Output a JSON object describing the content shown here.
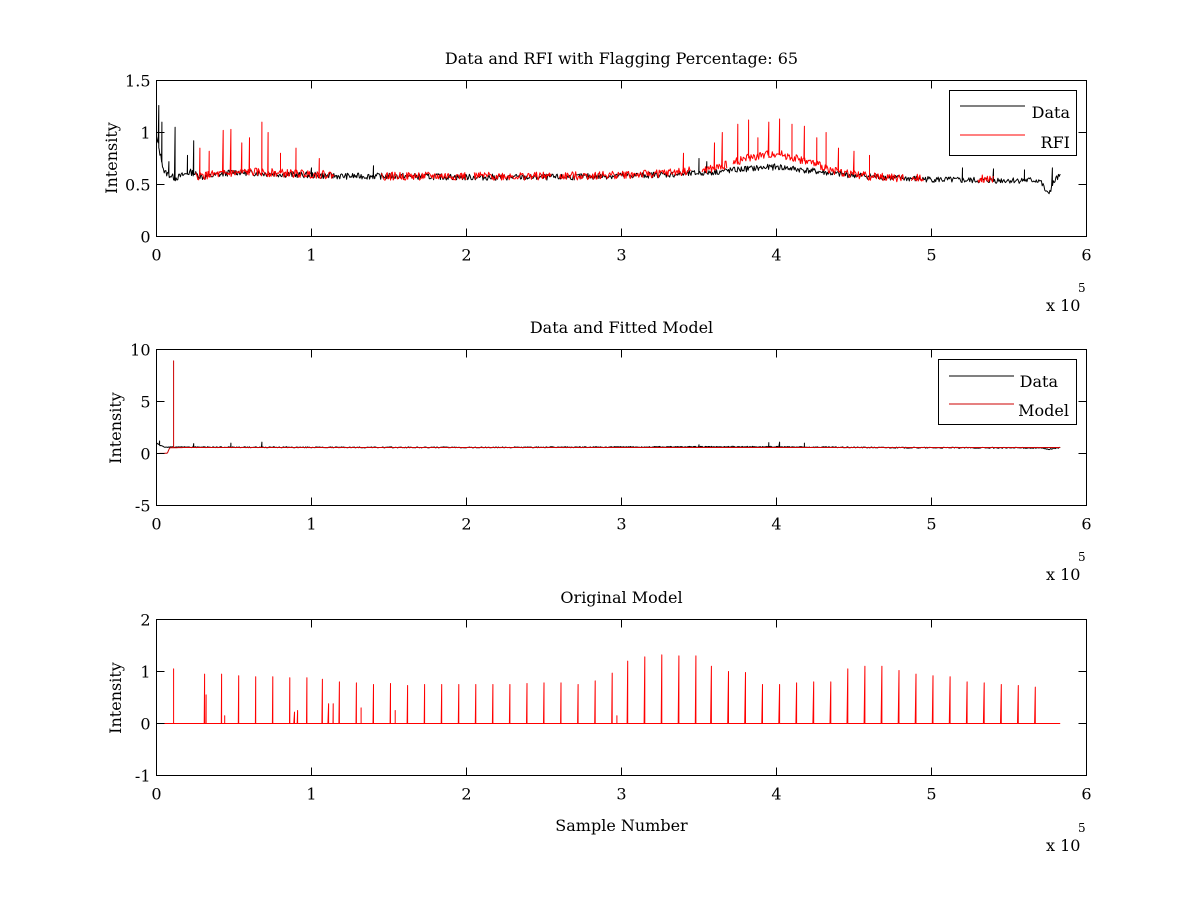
{
  "figure": {
    "background": "#ffffff",
    "data_color": "#000000",
    "rfi_color": "#ff0000"
  },
  "chart_data": [
    {
      "type": "line",
      "title": "Data and RFI with Flagging Percentage: 65",
      "xlabel": "",
      "ylabel": "Intensity",
      "xlim": [
        0,
        600000
      ],
      "ylim": [
        0,
        1.5
      ],
      "xticks": [
        0,
        1,
        2,
        3,
        4,
        5,
        6
      ],
      "yticks": [
        0,
        0.5,
        1,
        1.5
      ],
      "x_multiplier": {
        "base": "x 10",
        "power": "5"
      },
      "legend": {
        "position": "top-right",
        "entries": [
          "Data",
          "RFI"
        ]
      },
      "grid": false,
      "series": [
        {
          "name": "Data",
          "color": "#000000",
          "baseline": [
            [
              0,
              0.95
            ],
            [
              5000,
              0.62
            ],
            [
              12000,
              0.56
            ],
            [
              22000,
              0.62
            ],
            [
              30000,
              0.57
            ],
            [
              50000,
              0.62
            ],
            [
              80000,
              0.6
            ],
            [
              120000,
              0.58
            ],
            [
              160000,
              0.58
            ],
            [
              200000,
              0.57
            ],
            [
              260000,
              0.57
            ],
            [
              340000,
              0.6
            ],
            [
              360000,
              0.62
            ],
            [
              380000,
              0.65
            ],
            [
              400000,
              0.67
            ],
            [
              440000,
              0.6
            ],
            [
              480000,
              0.56
            ],
            [
              520000,
              0.54
            ],
            [
              560000,
              0.54
            ],
            [
              570000,
              0.54
            ],
            [
              575000,
              0.4
            ],
            [
              580000,
              0.55
            ],
            [
              583000,
              0.58
            ]
          ],
          "noise": 0.03,
          "peaks": [
            [
              1500,
              1.26
            ],
            [
              3500,
              1.1
            ],
            [
              8000,
              0.72
            ],
            [
              12000,
              1.05
            ],
            [
              20000,
              0.78
            ],
            [
              24000,
              0.92
            ],
            [
              60000,
              0.65
            ],
            [
              100000,
              0.66
            ],
            [
              140000,
              0.68
            ],
            [
              350000,
              0.75
            ],
            [
              355000,
              0.72
            ],
            [
              520000,
              0.66
            ],
            [
              540000,
              0.65
            ],
            [
              560000,
              0.64
            ],
            [
              578000,
              0.66
            ]
          ]
        },
        {
          "name": "RFI",
          "color": "#ff0000",
          "baseline": [
            [
              25000,
              0.58
            ],
            [
              60000,
              0.62
            ],
            [
              100000,
              0.6
            ],
            [
              140000,
              0.58
            ],
            [
              200000,
              0.58
            ],
            [
              260000,
              0.58
            ],
            [
              320000,
              0.6
            ],
            [
              360000,
              0.65
            ],
            [
              380000,
              0.75
            ],
            [
              400000,
              0.8
            ],
            [
              420000,
              0.72
            ],
            [
              440000,
              0.62
            ],
            [
              460000,
              0.58
            ],
            [
              482000,
              0.56
            ]
          ],
          "segments": [
            [
              25000,
              115000
            ],
            [
              145000,
              200000
            ],
            [
              205000,
              255000
            ],
            [
              260000,
              345000
            ],
            [
              352000,
              368000
            ],
            [
              372000,
              482000
            ],
            [
              487000,
              495000
            ],
            [
              530000,
              540000
            ]
          ],
          "noise": 0.04,
          "peaks": [
            [
              28000,
              0.85
            ],
            [
              34000,
              0.82
            ],
            [
              43000,
              1.02
            ],
            [
              48000,
              1.03
            ],
            [
              55000,
              0.9
            ],
            [
              60000,
              0.95
            ],
            [
              68000,
              1.1
            ],
            [
              72000,
              1.0
            ],
            [
              80000,
              0.8
            ],
            [
              90000,
              0.85
            ],
            [
              105000,
              0.75
            ],
            [
              340000,
              0.8
            ],
            [
              360000,
              0.9
            ],
            [
              365000,
              1.0
            ],
            [
              375000,
              1.08
            ],
            [
              382000,
              1.12
            ],
            [
              388000,
              0.95
            ],
            [
              395000,
              1.1
            ],
            [
              402000,
              1.13
            ],
            [
              410000,
              1.08
            ],
            [
              418000,
              1.06
            ],
            [
              426000,
              0.95
            ],
            [
              432000,
              1.0
            ],
            [
              440000,
              0.85
            ],
            [
              450000,
              0.82
            ],
            [
              460000,
              0.78
            ]
          ]
        }
      ]
    },
    {
      "type": "line",
      "title": "Data and Fitted Model",
      "xlabel": "",
      "ylabel": "Intensity",
      "xlim": [
        0,
        600000
      ],
      "ylim": [
        -5,
        10
      ],
      "xticks": [
        0,
        1,
        2,
        3,
        4,
        5,
        6
      ],
      "yticks": [
        -5,
        0,
        5,
        10
      ],
      "x_multiplier": {
        "base": "x 10",
        "power": "5"
      },
      "legend": {
        "position": "top-right",
        "entries": [
          "Data",
          "Model"
        ]
      },
      "grid": false,
      "series": [
        {
          "name": "Data",
          "color": "#000000",
          "baseline": [
            [
              0,
              0.95
            ],
            [
              5000,
              0.62
            ],
            [
              50000,
              0.6
            ],
            [
              200000,
              0.58
            ],
            [
              380000,
              0.65
            ],
            [
              480000,
              0.56
            ],
            [
              570000,
              0.54
            ],
            [
              575000,
              0.4
            ],
            [
              583000,
              0.58
            ]
          ],
          "noise": 0.05,
          "peaks": [
            [
              2000,
              1.2
            ],
            [
              24000,
              0.95
            ],
            [
              48000,
              1.0
            ],
            [
              68000,
              1.1
            ],
            [
              350000,
              0.85
            ],
            [
              395000,
              1.05
            ],
            [
              402000,
              1.1
            ],
            [
              418000,
              1.0
            ]
          ]
        },
        {
          "name": "Model",
          "color": "#cc0000",
          "baseline": [
            [
              0,
              0.0
            ],
            [
              7000,
              0.02
            ],
            [
              8500,
              0.55
            ],
            [
              20000,
              0.58
            ],
            [
              100000,
              0.58
            ],
            [
              300000,
              0.58
            ],
            [
              500000,
              0.58
            ],
            [
              583000,
              0.58
            ]
          ],
          "noise": 0.0,
          "peaks": [
            [
              11000,
              8.9
            ]
          ]
        }
      ]
    },
    {
      "type": "line",
      "title": "Original Model",
      "xlabel": "Sample Number",
      "ylabel": "Intensity",
      "xlim": [
        0,
        600000
      ],
      "ylim": [
        -1,
        2
      ],
      "xticks": [
        0,
        1,
        2,
        3,
        4,
        5,
        6
      ],
      "yticks": [
        -1,
        0,
        1,
        2
      ],
      "x_multiplier": {
        "base": "x 10",
        "power": "5"
      },
      "grid": false,
      "series": [
        {
          "name": "",
          "color": "#ff0000",
          "baseline": [
            [
              0,
              0.0
            ],
            [
              583000,
              0.0
            ]
          ],
          "noise": 0.0,
          "peaks": [
            [
              11000,
              1.05
            ],
            [
              31000,
              0.95
            ],
            [
              32000,
              0.55
            ],
            [
              42000,
              0.95
            ],
            [
              44000,
              0.15
            ],
            [
              53000,
              0.92
            ],
            [
              64000,
              0.9
            ],
            [
              75000,
              0.9
            ],
            [
              86000,
              0.88
            ],
            [
              89000,
              0.22
            ],
            [
              91000,
              0.25
            ],
            [
              97000,
              0.88
            ],
            [
              107000,
              0.85
            ],
            [
              111000,
              0.38
            ],
            [
              114000,
              0.38
            ],
            [
              118000,
              0.8
            ],
            [
              129000,
              0.78
            ],
            [
              132000,
              0.3
            ],
            [
              140000,
              0.75
            ],
            [
              151000,
              0.77
            ],
            [
              154000,
              0.25
            ],
            [
              162000,
              0.73
            ],
            [
              173000,
              0.75
            ],
            [
              184000,
              0.75
            ],
            [
              195000,
              0.75
            ],
            [
              206000,
              0.75
            ],
            [
              217000,
              0.75
            ],
            [
              228000,
              0.75
            ],
            [
              239000,
              0.77
            ],
            [
              250000,
              0.78
            ],
            [
              261000,
              0.78
            ],
            [
              272000,
              0.75
            ],
            [
              283000,
              0.82
            ],
            [
              294000,
              0.97
            ],
            [
              297000,
              0.15
            ],
            [
              304000,
              1.2
            ],
            [
              315000,
              1.28
            ],
            [
              326000,
              1.32
            ],
            [
              337000,
              1.3
            ],
            [
              348000,
              1.3
            ],
            [
              358000,
              1.1
            ],
            [
              369000,
              1.0
            ],
            [
              380000,
              0.98
            ],
            [
              391000,
              0.75
            ],
            [
              402000,
              0.75
            ],
            [
              413000,
              0.78
            ],
            [
              424000,
              0.8
            ],
            [
              435000,
              0.8
            ],
            [
              446000,
              1.05
            ],
            [
              457000,
              1.1
            ],
            [
              468000,
              1.1
            ],
            [
              479000,
              1.02
            ],
            [
              490000,
              0.95
            ],
            [
              501000,
              0.92
            ],
            [
              512000,
              0.9
            ],
            [
              523000,
              0.8
            ],
            [
              534000,
              0.78
            ],
            [
              545000,
              0.75
            ],
            [
              556000,
              0.73
            ],
            [
              567000,
              0.7
            ]
          ]
        }
      ]
    }
  ]
}
